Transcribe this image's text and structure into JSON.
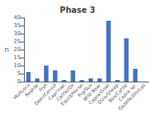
{
  "chart_data": {
    "type": "bar",
    "title": "Phase 3",
    "categories": [
      "Molluscs",
      "Reptile",
      "Fish",
      "Deer/Cervid",
      "Caprinae",
      "Cattle/Ox",
      "Equid/Horse",
      "Pig/Sus",
      "Wild Boar",
      "Capra/Goat",
      "Ovis/Sheep",
      "Bos/Cattle",
      "Capra sp.",
      "Gazelle/Dorcas"
    ],
    "values": [
      6,
      2,
      10,
      7,
      1,
      7,
      1,
      2,
      2,
      38,
      1,
      27,
      8,
      0
    ],
    "color": "#4472C4",
    "ylabel": "n",
    "ylim": [
      0,
      40
    ],
    "yticks": [
      0,
      5,
      10,
      15,
      20,
      25,
      30,
      35,
      40
    ],
    "grid": false
  }
}
